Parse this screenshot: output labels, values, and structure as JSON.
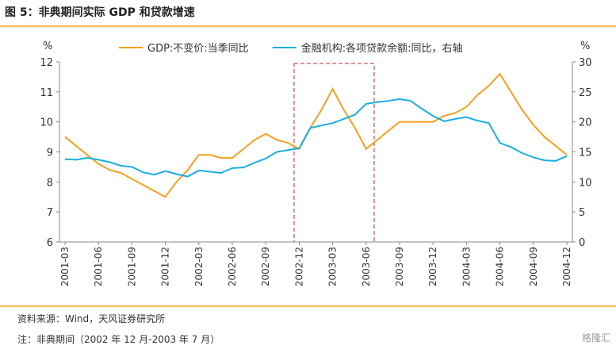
{
  "header": {
    "title": "图 5：非典期间实际 GDP 和贷款增速"
  },
  "chart_data": {
    "type": "line",
    "y_unit": "%",
    "y2_unit": "%",
    "categories": [
      "2001-03",
      null,
      null,
      "2001-06",
      null,
      null,
      "2001-09",
      null,
      null,
      "2001-12",
      null,
      null,
      "2002-03",
      null,
      null,
      "2002-06",
      null,
      null,
      "2002-09",
      null,
      null,
      "2002-12",
      null,
      null,
      "2003-03",
      null,
      null,
      "2003-06",
      null,
      null,
      "2003-09",
      null,
      null,
      "2003-12",
      null,
      null,
      "2004-03",
      null,
      null,
      "2004-06",
      null,
      null,
      "2004-09",
      null,
      null,
      "2004-12"
    ],
    "series": [
      {
        "name": "GDP:不变价:当季同比",
        "color": "#f5a01f",
        "axis": "y",
        "values": [
          9.5,
          9.2,
          8.9,
          8.6,
          8.4,
          8.3,
          8.1,
          7.9,
          7.7,
          7.5,
          8.0,
          8.4,
          8.9,
          8.9,
          8.8,
          8.8,
          9.1,
          9.4,
          9.6,
          9.4,
          9.3,
          9.1,
          9.8,
          10.4,
          11.1,
          10.4,
          9.8,
          9.1,
          9.4,
          9.7,
          10.0,
          10.0,
          10.0,
          10.0,
          10.2,
          10.3,
          10.5,
          10.9,
          11.2,
          11.6,
          11.0,
          10.4,
          9.9,
          9.5,
          9.2,
          8.9
        ]
      },
      {
        "name": "金融机构:各项贷款余额:同比，右轴",
        "color": "#1aaee0",
        "axis": "y2",
        "values": [
          13.8,
          13.7,
          14.0,
          13.7,
          13.3,
          12.7,
          12.5,
          11.6,
          11.2,
          11.8,
          11.3,
          10.9,
          11.9,
          11.7,
          11.5,
          12.3,
          12.4,
          13.2,
          13.9,
          15.0,
          15.3,
          15.6,
          19.0,
          19.4,
          19.8,
          20.5,
          21.2,
          23.0,
          23.3,
          23.5,
          23.8,
          23.5,
          22.2,
          21.0,
          20.1,
          20.5,
          20.8,
          20.2,
          19.8,
          16.5,
          15.8,
          14.8,
          14.1,
          13.6,
          13.5,
          14.3
        ]
      }
    ],
    "ylim": [
      6,
      12
    ],
    "yticks": [
      6,
      7,
      8,
      9,
      10,
      11,
      12
    ],
    "y2lim": [
      0,
      30
    ],
    "y2ticks": [
      0,
      5,
      10,
      15,
      20,
      25,
      30
    ]
  },
  "footer": {
    "source": "资料来源：Wind，天风证券研究所",
    "note": "注：非典期间（2002 年 12 月-2003 年 7 月）",
    "watermark": "格隆汇"
  }
}
